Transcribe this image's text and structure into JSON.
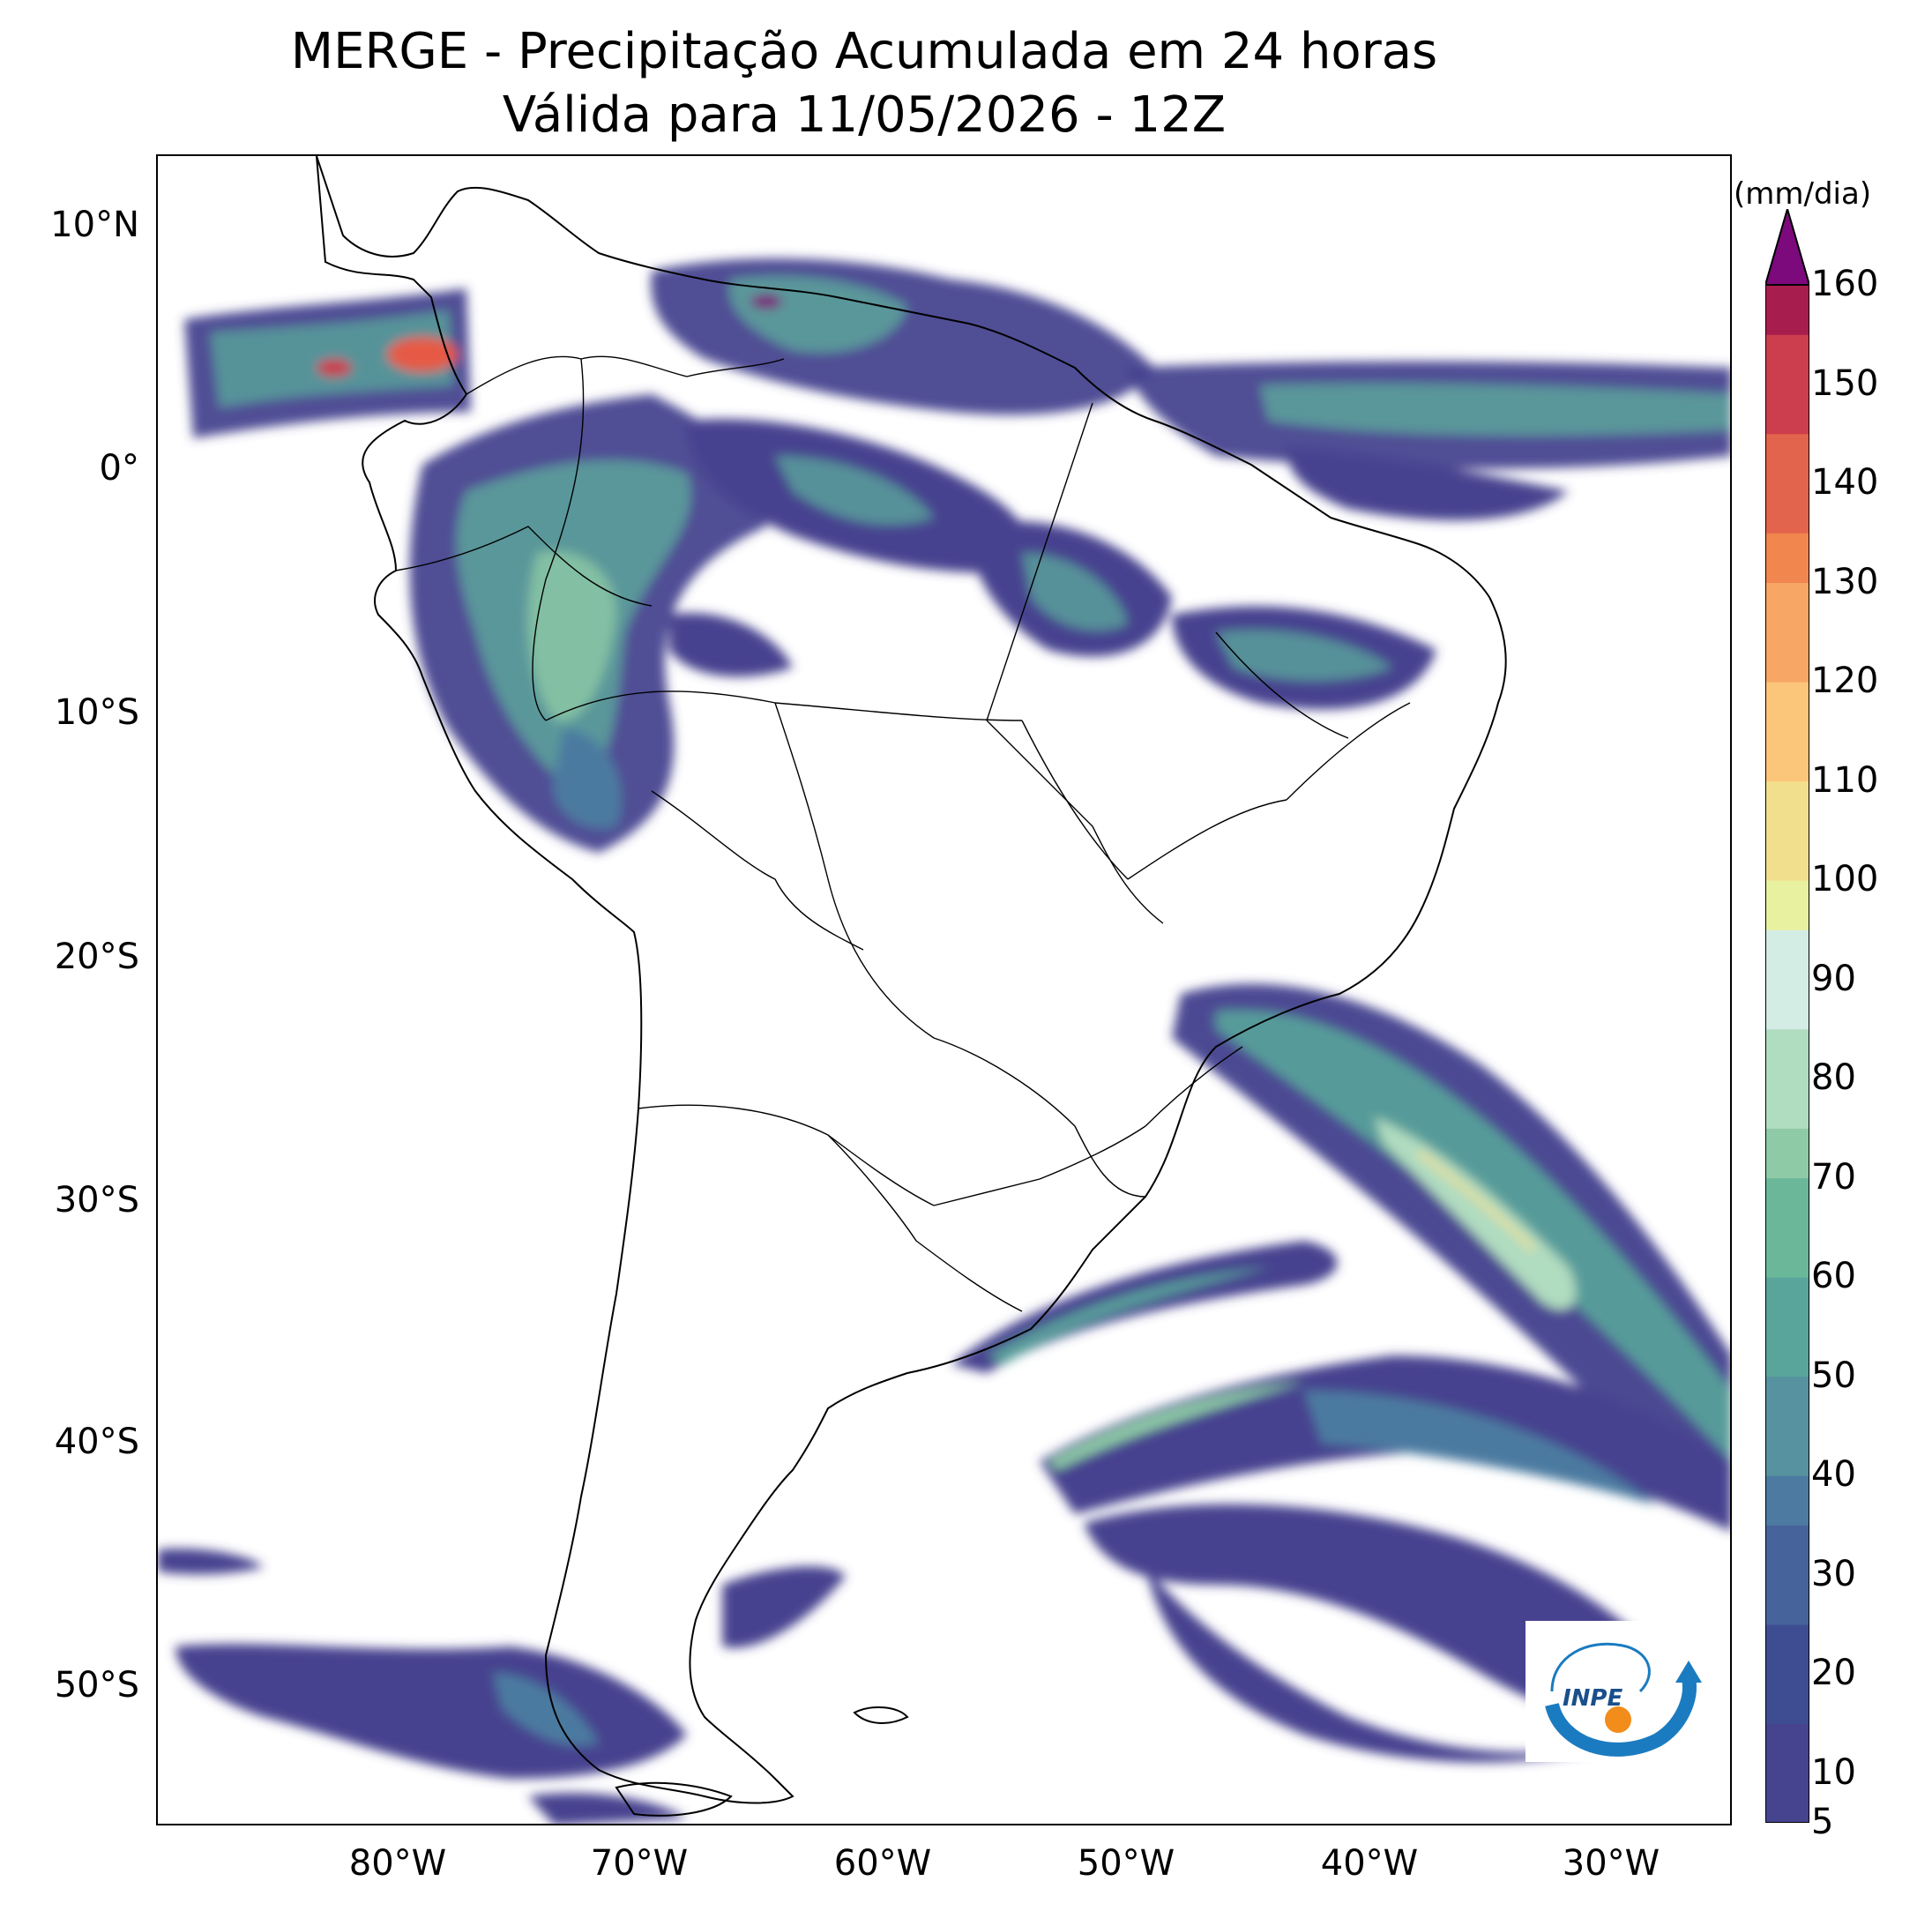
{
  "title": {
    "line1": "MERGE - Precipitação Acumulada em 24 horas",
    "line2": "Válida para 11/05/2026 - 12Z"
  },
  "axes": {
    "lat_ticks": [
      "10°N",
      "0°",
      "10°S",
      "20°S",
      "30°S",
      "40°S",
      "50°S"
    ],
    "lon_ticks": [
      "80°W",
      "70°W",
      "60°W",
      "50°W",
      "40°W",
      "30°W"
    ],
    "lon_range": [
      -90,
      -25
    ],
    "lat_range": [
      -56,
      13
    ]
  },
  "colorbar": {
    "unit": "(mm/dia)",
    "ticks": [
      "5",
      "10",
      "20",
      "30",
      "40",
      "50",
      "60",
      "70",
      "80",
      "90",
      "100",
      "110",
      "120",
      "130",
      "140",
      "150",
      "160"
    ],
    "extend": "max",
    "colors": [
      "#46438f",
      "#3e4d92",
      "#46639b",
      "#4c7aa0",
      "#56929f",
      "#5aa59b",
      "#6ab79a",
      "#8ecaa6",
      "#b0dcc0",
      "#d3ece4",
      "#e7f1a0",
      "#f2df8e",
      "#fbc57a",
      "#f7a665",
      "#f1864f",
      "#e3644c",
      "#cc3e4d",
      "#a71d4e",
      "#7c0a7c"
    ]
  },
  "logo": {
    "text": "INPE",
    "colors": {
      "arc": "#1a7bc0",
      "dot": "#f28c1b"
    }
  },
  "map": {
    "ocean": "#ffffff",
    "border": "#000000",
    "rain_low": "#46438f",
    "rain_mid": "#5aa59b",
    "rain_high": "#b0dcc0",
    "rain_peak": "#e65a44"
  }
}
